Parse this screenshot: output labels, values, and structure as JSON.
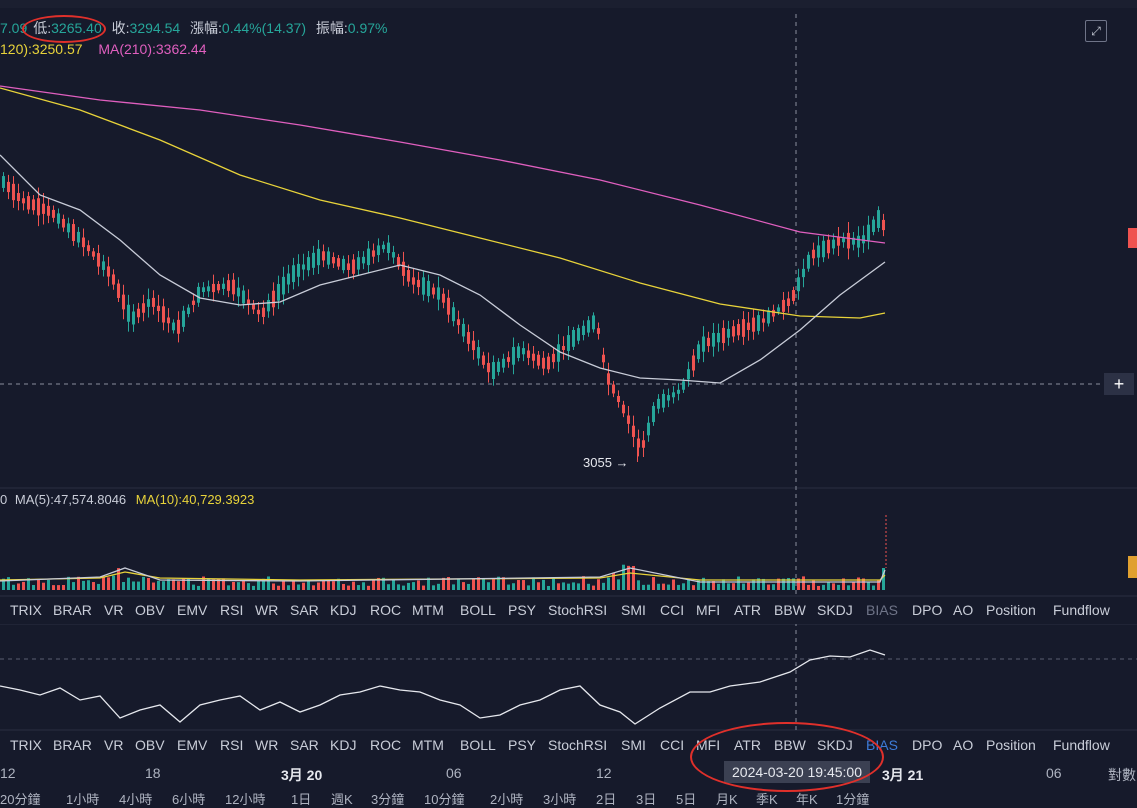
{
  "header": {
    "open_partial": "7.09",
    "low_label": "低:",
    "low_value": "3265.40",
    "close_label": "收:",
    "close_value": "3294.54",
    "change_label": "漲幅:",
    "change_value": "0.44%(14.37)",
    "amplitude_label": "振幅:",
    "amplitude_value": "0.97%"
  },
  "ma": {
    "ma120_label": "120):",
    "ma120_value": "3250.57",
    "ma210_label": "MA(210):",
    "ma210_value": "3362.44"
  },
  "volume": {
    "prefix": "0",
    "ma5_label": "MA(5):",
    "ma5_value": "47,574.8046",
    "ma10_label": "MA(10):",
    "ma10_value": "40,729.3923"
  },
  "annotation": {
    "low_point": "3055 →"
  },
  "indicator_tabs": [
    "TRIX",
    "BRAR",
    "VR",
    "OBV",
    "EMV",
    "RSI",
    "WR",
    "SAR",
    "KDJ",
    "ROC",
    "MTM",
    "BOLL",
    "PSY",
    "StochRSI",
    "SMI",
    "CCI",
    "MFI",
    "ATR",
    "BBW",
    "SKDJ",
    "BIAS",
    "DPO",
    "AO",
    "Position",
    "Fundflow"
  ],
  "active_tab": "BIAS",
  "time_axis": {
    "labels": [
      "12",
      "18",
      "3月 20",
      "06",
      "12",
      "3月 21",
      "06"
    ],
    "crosshair_time": "2024-03-20 19:45:00",
    "right_label": "對數"
  },
  "intervals": [
    "20分鐘",
    "1小時",
    "4小時",
    "6小時",
    "12小時",
    "1日",
    "週K",
    "3分鐘",
    "10分鐘",
    "2小時",
    "3小時",
    "2日",
    "3日",
    "5日",
    "月K",
    "季K",
    "年K",
    "1分鐘"
  ],
  "colors": {
    "up": "#26a69a",
    "down": "#ef5350",
    "ma120": "#e8d33a",
    "ma210": "#e05fbf",
    "ma_short": "#c8ccd8",
    "annotation": "#e0302b",
    "active_tab": "#3d7bd9"
  },
  "icons": {
    "fullscreen": "fullscreen-icon",
    "add": "plus-icon"
  },
  "chart_data": {
    "type": "candlestick",
    "y_labels": [],
    "series": [
      {
        "name": "MA(120)",
        "last": 3250.57
      },
      {
        "name": "MA(210)",
        "last": 3362.44
      }
    ],
    "low_marker": 3055,
    "last_close": 3294.54,
    "last_low": 3265.4
  }
}
